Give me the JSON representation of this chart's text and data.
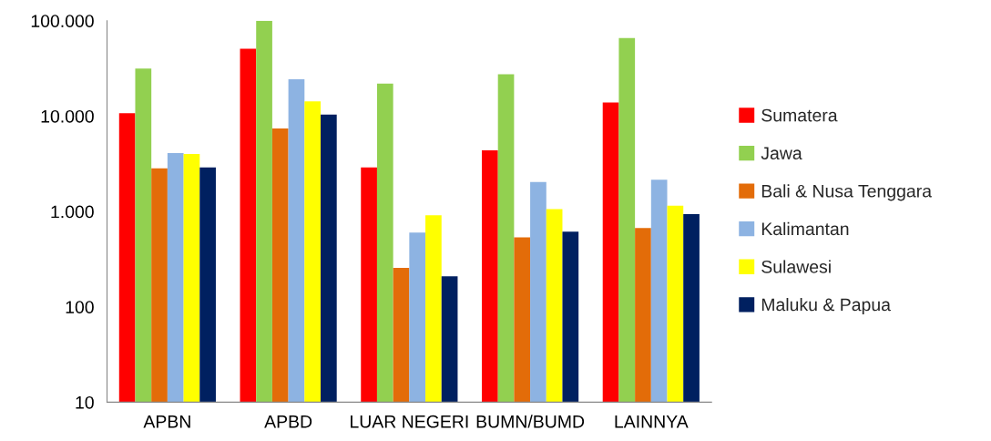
{
  "chart_data": {
    "type": "bar",
    "categories": [
      "APBN",
      "APBD",
      "LUAR NEGERI",
      "BUMN/BUMD",
      "LAINNYA"
    ],
    "series": [
      {
        "name": "Sumatera",
        "color": "#ff0000",
        "values": [
          10700,
          50800,
          2900,
          4370,
          13900
        ]
      },
      {
        "name": "Jawa",
        "color": "#92d050",
        "values": [
          31500,
          100000,
          21900,
          27400,
          65900
        ]
      },
      {
        "name": "Bali & Nusa Tenggara",
        "color": "#e36c09",
        "values": [
          2830,
          7400,
          256,
          536,
          670
        ]
      },
      {
        "name": "Kalimantan",
        "color": "#8db3e2",
        "values": [
          4100,
          24300,
          600,
          2040,
          2150
        ]
      },
      {
        "name": "Sulawesi",
        "color": "#ffff00",
        "values": [
          4000,
          14300,
          910,
          1060,
          1150
        ]
      },
      {
        "name": "Maluku & Papua",
        "color": "#002060",
        "values": [
          2900,
          10400,
          209,
          615,
          940
        ]
      }
    ],
    "log": "y",
    "ylim": [
      10,
      100000
    ],
    "yticks": [
      10,
      100,
      {
        "value": 1000,
        "label": "1.000"
      },
      {
        "value": 10000,
        "label": "10.000"
      },
      {
        "value": 100000,
        "label": "100.000"
      }
    ],
    "grid": false,
    "legend": "right"
  }
}
